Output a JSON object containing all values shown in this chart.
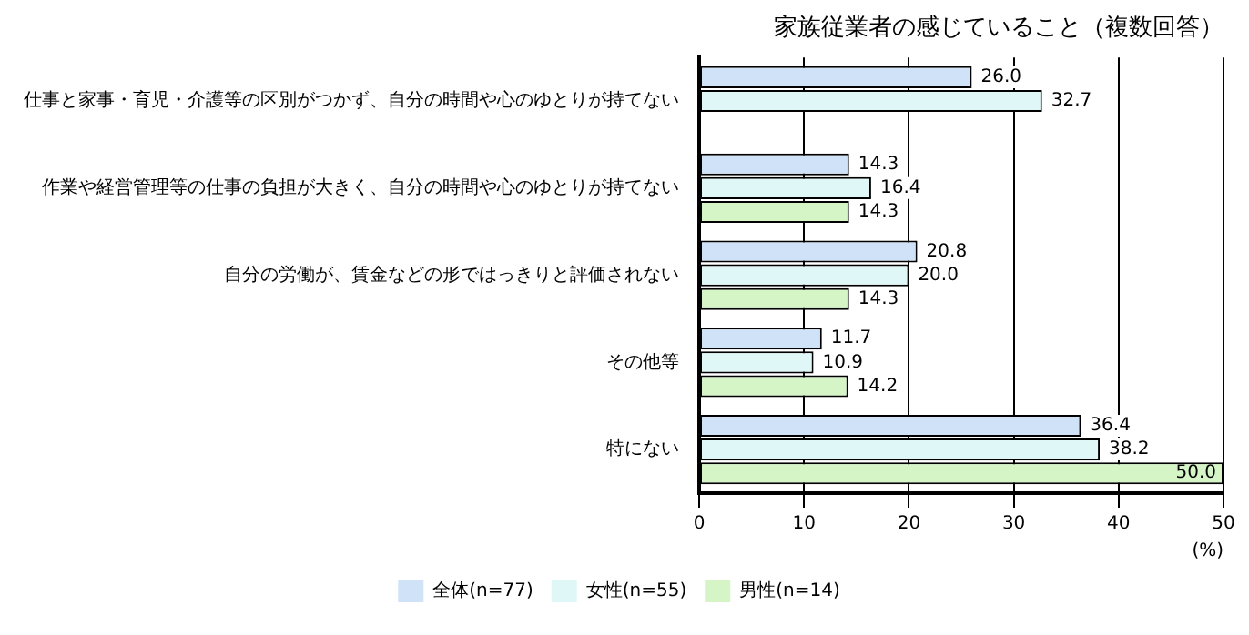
{
  "chart_data": {
    "type": "bar",
    "orientation": "horizontal",
    "title": "家族従業者の感じていること（複数回答）",
    "xlabel": "(%)",
    "categories": [
      "仕事と家事・育児・介護等の区別がつかず、自分の時間や心のゆとりが持てない",
      "作業や経営管理等の仕事の負担が大きく、自分の時間や心のゆとりが持てない",
      "自分の労働が、賃金などの形ではっきりと評価されない",
      "その他等",
      "特にない"
    ],
    "series": [
      {
        "name": "全体(n=77)",
        "color": "#cfe2f7",
        "values": [
          26.0,
          14.3,
          20.8,
          11.7,
          36.4
        ],
        "value_labels": [
          "26.0",
          "14.3",
          "20.8",
          "11.7",
          "36.4"
        ]
      },
      {
        "name": "女性(n=55)",
        "color": "#dff7f7",
        "values": [
          32.7,
          16.4,
          20.0,
          10.9,
          38.2
        ],
        "value_labels": [
          "32.7",
          "16.4",
          "20.0",
          "10.9",
          "38.2"
        ]
      },
      {
        "name": "男性(n=14)",
        "color": "#d6f5c6",
        "values": [
          null,
          14.3,
          14.3,
          14.2,
          50.0
        ],
        "value_labels": [
          null,
          "14.3",
          "14.3",
          "14.2",
          "50.0"
        ]
      }
    ],
    "xlim": [
      0,
      50
    ],
    "xticks": [
      0,
      10,
      20,
      30,
      40,
      50
    ],
    "grid": "x",
    "legend": "bottom"
  }
}
